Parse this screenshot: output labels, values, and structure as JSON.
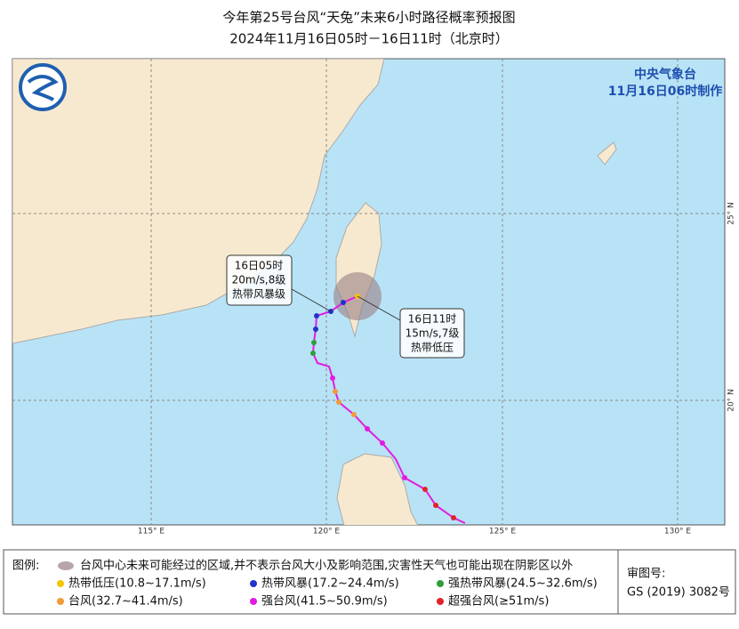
{
  "header": {
    "title": "今年第25号台风“天兔”未来6小时路径概率预报图",
    "subtitle": "2024年11月16日05时－16日11时（北京时）"
  },
  "agency": {
    "name": "中央气象台",
    "issued": "11月16日06时制作"
  },
  "axes": {
    "longitudes": [
      "115° E",
      "120° E",
      "125° E",
      "130° E"
    ],
    "latitudes": [
      "25° N",
      "20° N"
    ]
  },
  "callouts": [
    {
      "time": "16日05时",
      "wind": "20m/s,8级",
      "level": "热带风暴级"
    },
    {
      "time": "16日11时",
      "wind": "15m/s,7级",
      "level": "热带低压"
    }
  ],
  "legend": {
    "title": "图例:",
    "cone_note": "台风中心未来可能经过的区域,并不表示台风大小及影响范围,灾害性天气也可能出现在阴影区以外",
    "items": [
      {
        "label": "热带低压(10.8~17.1m/s)",
        "color": "#f5c400"
      },
      {
        "label": "热带风暴(17.2~24.4m/s)",
        "color": "#2233cc"
      },
      {
        "label": "强热带风暴(24.5~32.6m/s)",
        "color": "#2e9e3a"
      },
      {
        "label": "台风(32.7~41.4m/s)",
        "color": "#f29b3a"
      },
      {
        "label": "强台风(41.5~50.9m/s)",
        "color": "#e21ce2"
      },
      {
        "label": "超强台风(≥51m/s)",
        "color": "#e2222a"
      }
    ]
  },
  "approval": {
    "label": "审图号:",
    "code": "GS (2019) 3082号"
  }
}
